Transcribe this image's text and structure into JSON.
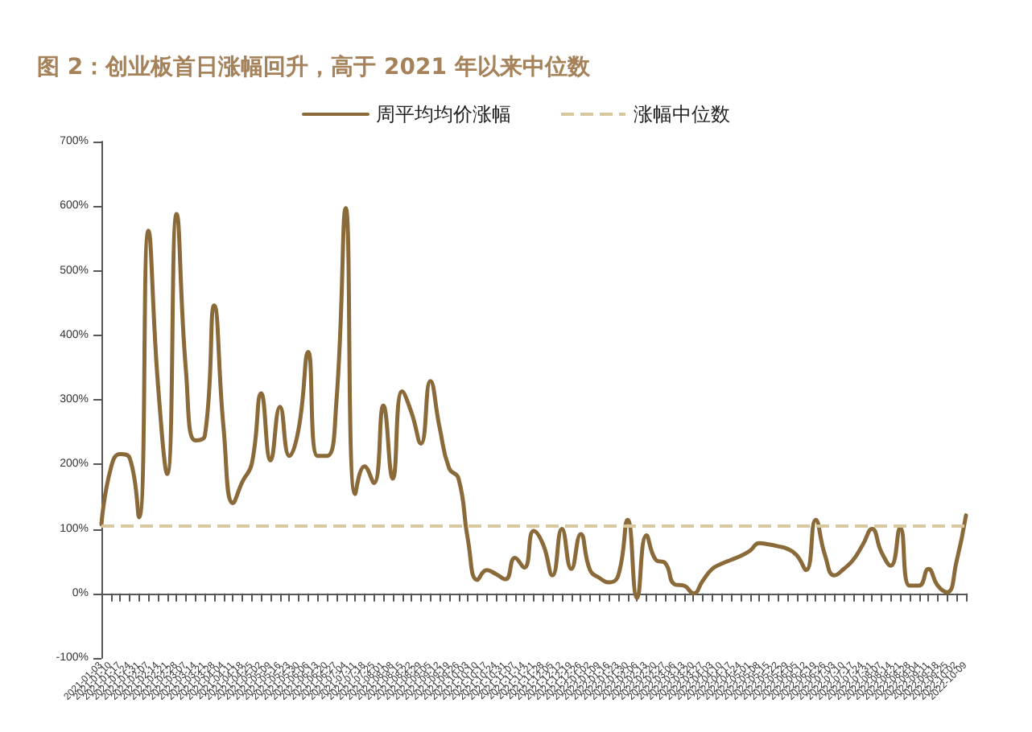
{
  "chart_data": {
    "type": "line",
    "title": "图 2：创业板首日涨幅回升，高于 2021 年以来中位数",
    "categories": [
      "2021-01-03",
      "2021-01-10",
      "2021-01-17",
      "2021-01-24",
      "2021-01-31",
      "2021-02-07",
      "2021-02-14",
      "2021-02-21",
      "2021-02-28",
      "2021-03-07",
      "2021-03-14",
      "2021-03-21",
      "2021-03-28",
      "2021-04-04",
      "2021-04-11",
      "2021-04-18",
      "2021-04-25",
      "2021-05-02",
      "2021-05-09",
      "2021-05-16",
      "2021-05-23",
      "2021-05-30",
      "2021-06-06",
      "2021-06-13",
      "2021-06-20",
      "2021-06-27",
      "2021-07-04",
      "2021-07-11",
      "2021-07-18",
      "2021-07-25",
      "2021-08-01",
      "2021-08-08",
      "2021-08-15",
      "2021-08-22",
      "2021-08-29",
      "2021-09-05",
      "2021-09-12",
      "2021-09-19",
      "2021-09-26",
      "2021-10-03",
      "2021-10-10",
      "2021-10-17",
      "2021-10-24",
      "2021-10-31",
      "2021-11-07",
      "2021-11-14",
      "2021-11-21",
      "2021-11-28",
      "2021-12-05",
      "2021-12-12",
      "2021-12-19",
      "2021-12-26",
      "2022-01-02",
      "2022-01-09",
      "2022-01-16",
      "2022-01-23",
      "2022-01-30",
      "2022-02-06",
      "2022-02-13",
      "2022-02-20",
      "2022-02-27",
      "2022-03-06",
      "2022-03-13",
      "2022-03-20",
      "2022-03-27",
      "2022-04-03",
      "2022-04-10",
      "2022-04-17",
      "2022-04-24",
      "2022-05-01",
      "2022-05-08",
      "2022-05-15",
      "2022-05-22",
      "2022-05-29",
      "2022-06-05",
      "2022-06-12",
      "2022-06-19",
      "2022-06-26",
      "2022-07-03",
      "2022-07-10",
      "2022-07-17",
      "2022-07-24",
      "2022-07-31",
      "2022-08-07",
      "2022-08-14",
      "2022-08-21",
      "2022-08-28",
      "2022-09-04",
      "2022-09-11",
      "2022-09-18",
      "2022-09-25",
      "2022-10-02",
      "2022-10-09"
    ],
    "series": [
      {
        "name": "周平均均价涨幅",
        "color": "#8b6a3a",
        "values": [
          107,
          194,
          216,
          210,
          118,
          562,
          327,
          185,
          588,
          344,
          237,
          244,
          446,
          256,
          140,
          173,
          201,
          310,
          206,
          289,
          213,
          256,
          374,
          213,
          213,
          296,
          597,
          154,
          197,
          171,
          291,
          178,
          313,
          280,
          232,
          329,
          256,
          194,
          178,
          83,
          21,
          36,
          30,
          22,
          55,
          40,
          97,
          76,
          28,
          100,
          38,
          92,
          36,
          24,
          17,
          28,
          114,
          -7,
          90,
          52,
          47,
          14,
          12,
          0,
          20,
          38,
          46,
          52,
          58,
          66,
          78,
          76,
          73,
          69,
          59,
          36,
          114,
          59,
          28,
          38,
          52,
          75,
          100,
          64,
          43,
          102,
          12,
          12,
          38,
          12,
          2,
          50,
          121
        ]
      }
    ],
    "ref_lines": [
      {
        "axis": "y",
        "value": 104,
        "label": "涨幅中位数",
        "color": "#d9c7a0",
        "line_style": "dashed"
      }
    ],
    "ylim": [
      -100,
      700
    ],
    "yticks": [
      {
        "value": -100,
        "label": "-100%"
      },
      {
        "value": 0,
        "label": "0%"
      },
      {
        "value": 100,
        "label": "100%"
      },
      {
        "value": 200,
        "label": "200%"
      },
      {
        "value": 300,
        "label": "300%"
      },
      {
        "value": 400,
        "label": "400%"
      },
      {
        "value": 500,
        "label": "500%"
      },
      {
        "value": 600,
        "label": "600%"
      },
      {
        "value": 700,
        "label": "700%"
      }
    ],
    "legend": "top",
    "marker": "none",
    "line_style": "solid"
  }
}
